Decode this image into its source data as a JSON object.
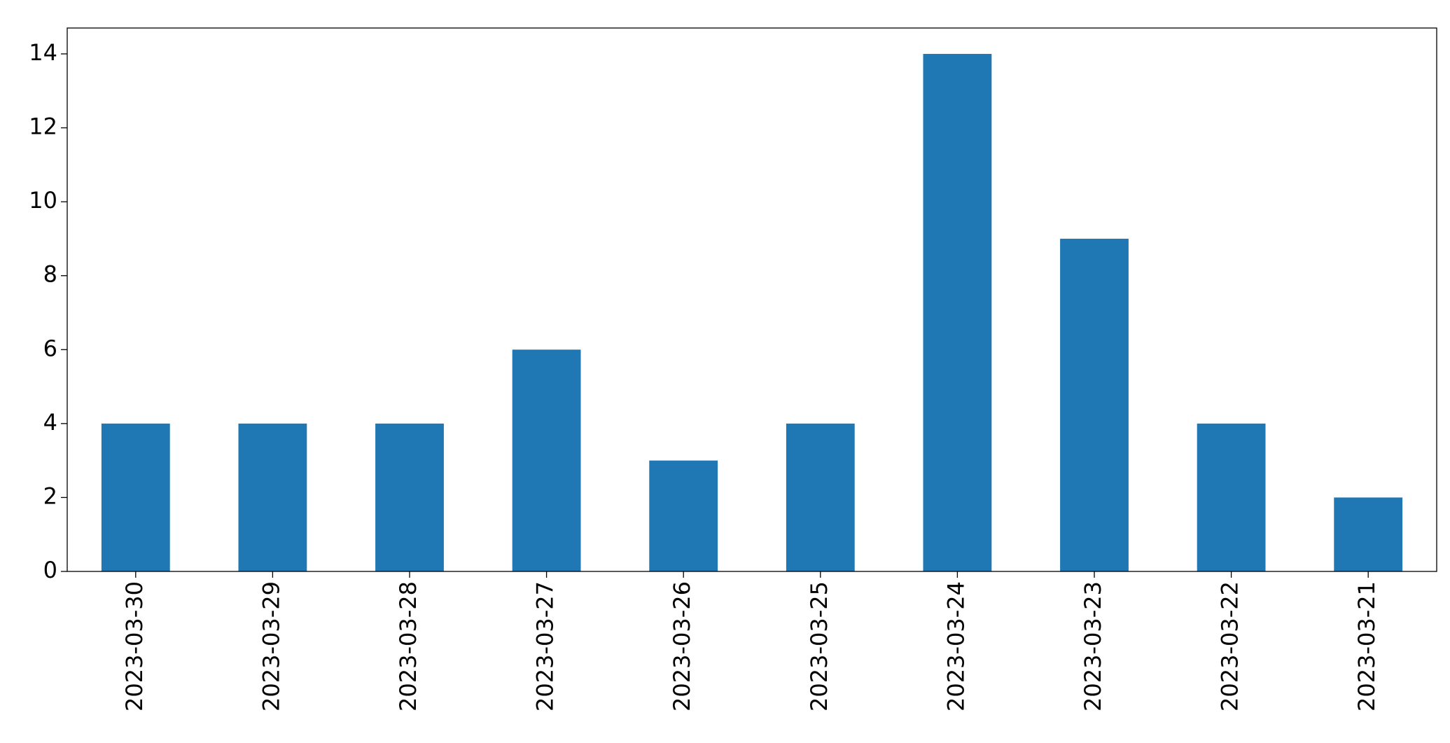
{
  "chart_data": {
    "type": "bar",
    "categories": [
      "2023-03-30",
      "2023-03-29",
      "2023-03-28",
      "2023-03-27",
      "2023-03-26",
      "2023-03-25",
      "2023-03-24",
      "2023-03-23",
      "2023-03-22",
      "2023-03-21"
    ],
    "values": [
      4,
      4,
      4,
      6,
      3,
      4,
      14,
      9,
      4,
      2
    ],
    "color": "#1f77b4",
    "ylim": [
      0,
      14.7
    ],
    "yticks": [
      0,
      2,
      4,
      6,
      8,
      10,
      12,
      14
    ],
    "grid": false
  }
}
